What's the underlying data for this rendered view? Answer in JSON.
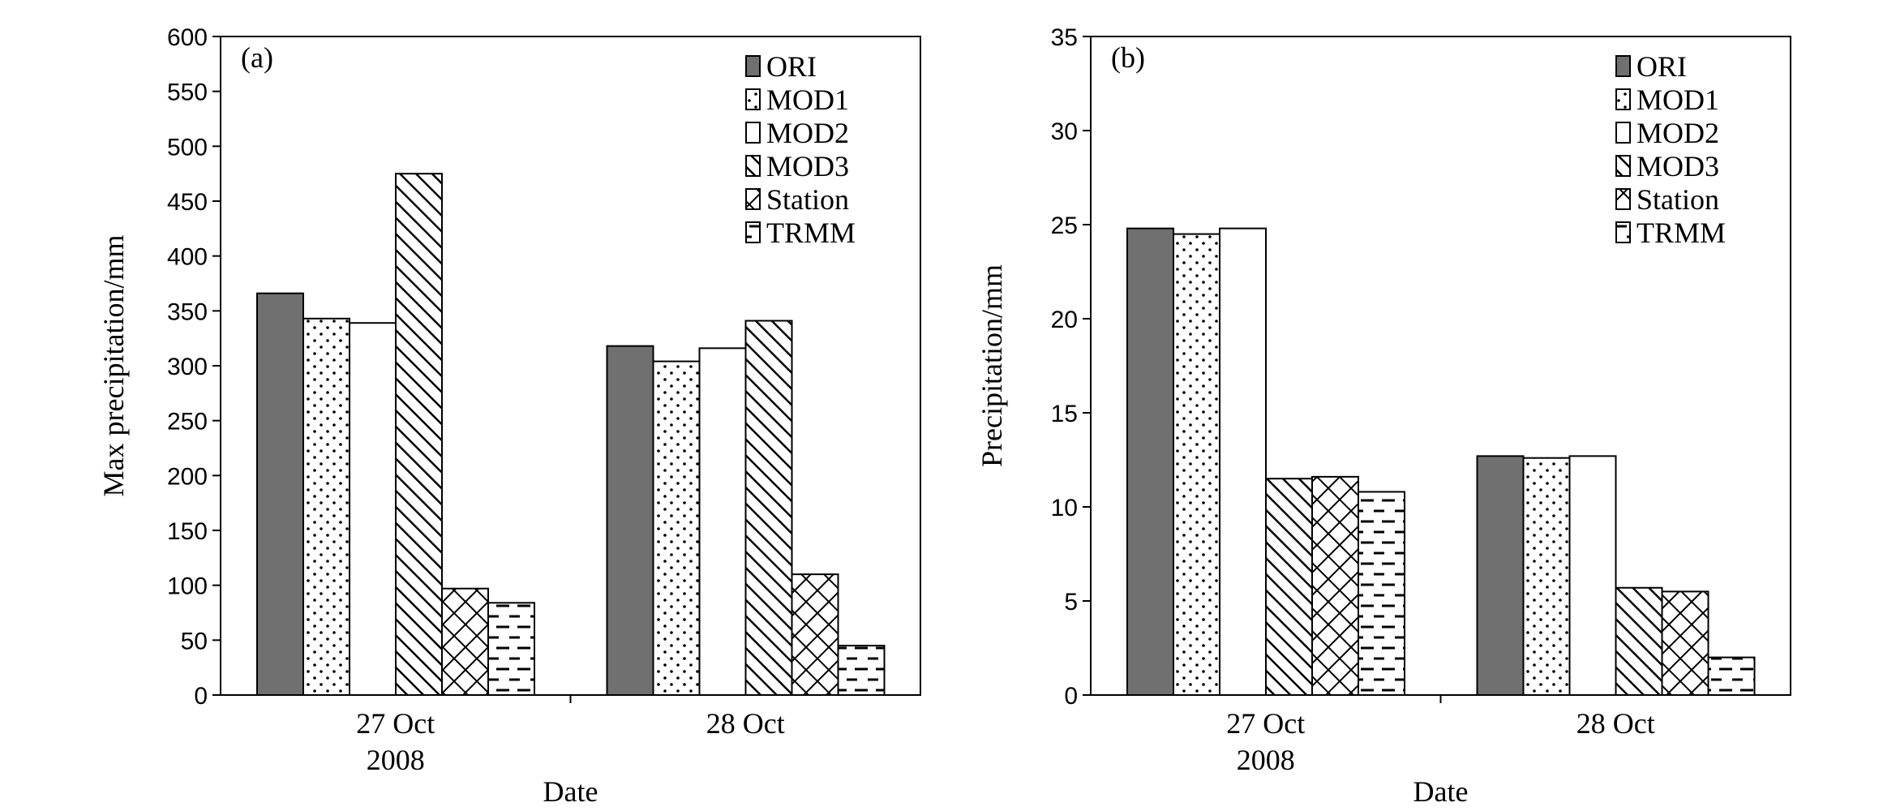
{
  "chart_data": [
    {
      "type": "bar",
      "panel_label": "(a)",
      "xlabel": "Date",
      "ylabel": "Max precipitation/mm",
      "ylim": [
        0,
        600
      ],
      "yticks": [
        "0",
        "50",
        "100",
        "150",
        "200",
        "250",
        "300",
        "350",
        "400",
        "450",
        "500",
        "550",
        "600"
      ],
      "categories": [
        "27 Oct",
        "28 Oct"
      ],
      "category_sublabels": [
        "2008",
        ""
      ],
      "legend_position": "top-right",
      "grid": false,
      "series": [
        {
          "name": "ORI",
          "values": [
            366,
            318
          ],
          "pattern": "solid-gray"
        },
        {
          "name": "MOD1",
          "values": [
            343,
            304
          ],
          "pattern": "dots"
        },
        {
          "name": "MOD2",
          "values": [
            339,
            316
          ],
          "pattern": "blank"
        },
        {
          "name": "MOD3",
          "values": [
            475,
            341
          ],
          "pattern": "diagonal"
        },
        {
          "name": "Station",
          "values": [
            97,
            110
          ],
          "pattern": "crosshatch"
        },
        {
          "name": "TRMM",
          "values": [
            84,
            45
          ],
          "pattern": "dashes"
        }
      ]
    },
    {
      "type": "bar",
      "panel_label": "(b)",
      "xlabel": "Date",
      "ylabel": "Precipitation/mm",
      "ylim": [
        0,
        35
      ],
      "yticks": [
        "0",
        "5",
        "10",
        "15",
        "20",
        "25",
        "30",
        "35"
      ],
      "categories": [
        "27 Oct",
        "28 Oct"
      ],
      "category_sublabels": [
        "2008",
        ""
      ],
      "legend_position": "top-right",
      "grid": false,
      "series": [
        {
          "name": "ORI",
          "values": [
            24.8,
            12.7
          ],
          "pattern": "solid-gray"
        },
        {
          "name": "MOD1",
          "values": [
            24.5,
            12.6
          ],
          "pattern": "dots"
        },
        {
          "name": "MOD2",
          "values": [
            24.8,
            12.7
          ],
          "pattern": "blank"
        },
        {
          "name": "MOD3",
          "values": [
            11.5,
            5.7
          ],
          "pattern": "diagonal"
        },
        {
          "name": "Station",
          "values": [
            11.6,
            5.5
          ],
          "pattern": "crosshatch"
        },
        {
          "name": "TRMM",
          "values": [
            10.8,
            2.0
          ],
          "pattern": "dashes"
        }
      ]
    }
  ],
  "colors": {
    "ori_fill": "#707070",
    "stroke": "#000000",
    "background": "#ffffff"
  }
}
